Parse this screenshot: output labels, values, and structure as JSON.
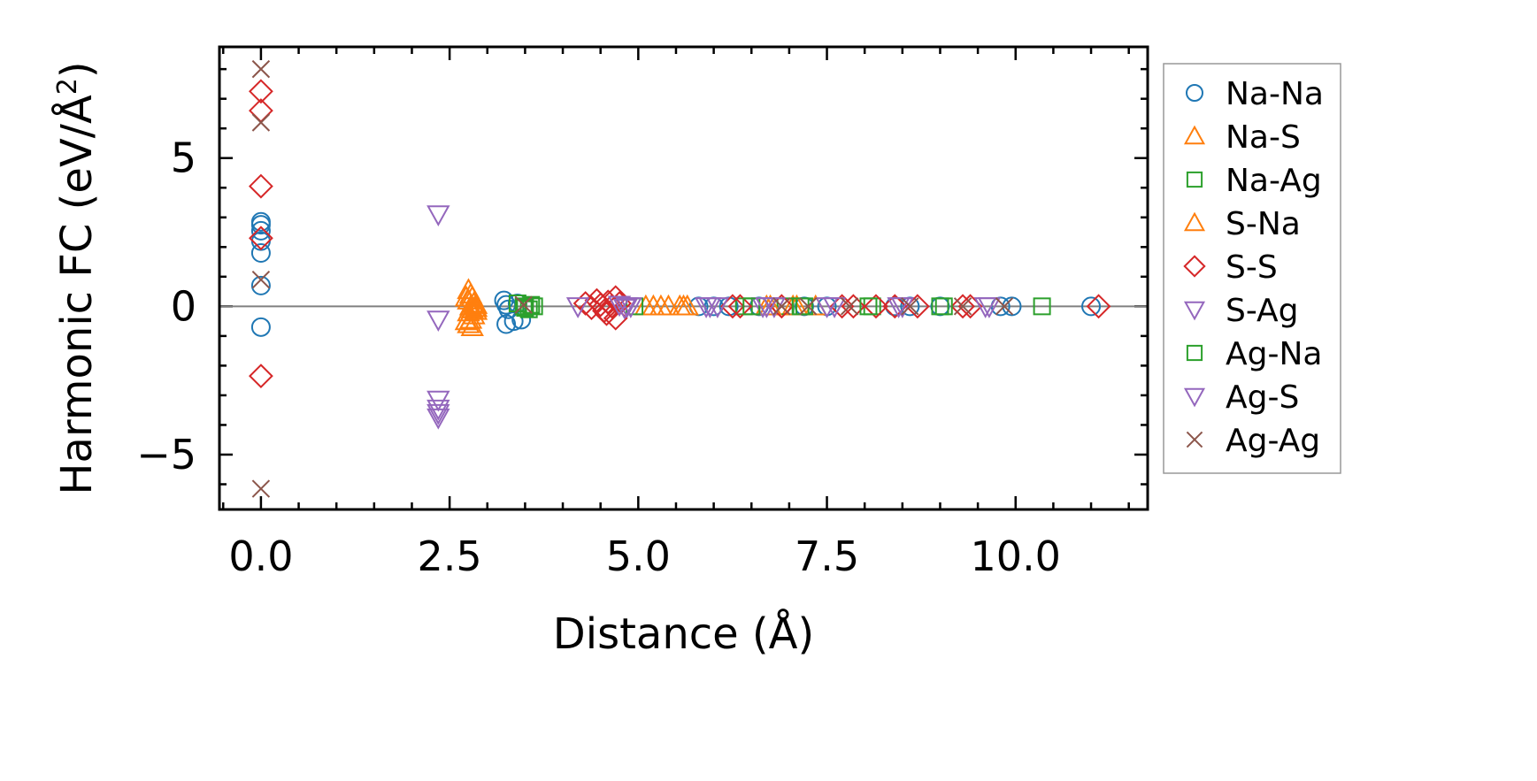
{
  "chart_data": {
    "type": "scatter",
    "xlabel": "Distance (Å)",
    "ylabel_main": "Harmonic FC (eV/Å",
    "ylabel_sup": "2",
    "ylabel_close": ")",
    "xlim": [
      -0.55,
      11.75
    ],
    "ylim": [
      -6.85,
      8.75
    ],
    "xticks": [
      0.0,
      2.5,
      5.0,
      7.5,
      10.0
    ],
    "xtick_labels": [
      "0.0",
      "2.5",
      "5.0",
      "7.5",
      "10.0"
    ],
    "yticks": [
      -5,
      0,
      5
    ],
    "ytick_labels": [
      "−5",
      "0",
      "5"
    ],
    "reference_line_y": 0,
    "grid": false,
    "legend_position": "outside-right",
    "series": [
      {
        "name": "Na-Na",
        "marker": "circle",
        "color": "#1f77b4",
        "points": [
          [
            0,
            2.85
          ],
          [
            0,
            2.75
          ],
          [
            0,
            2.55
          ],
          [
            0,
            2.2
          ],
          [
            0,
            1.8
          ],
          [
            0,
            0.7
          ],
          [
            0,
            -0.7
          ],
          [
            3.22,
            0.2
          ],
          [
            3.25,
            0.05
          ],
          [
            3.28,
            -0.1
          ],
          [
            3.25,
            -0.6
          ],
          [
            3.35,
            -0.5
          ],
          [
            3.45,
            -0.45
          ],
          [
            3.4,
            0.1
          ],
          [
            5.8,
            0
          ],
          [
            6.0,
            0
          ],
          [
            6.2,
            0
          ],
          [
            6.6,
            0
          ],
          [
            7.2,
            0
          ],
          [
            7.5,
            0
          ],
          [
            8.4,
            0
          ],
          [
            8.6,
            0
          ],
          [
            9.0,
            0
          ],
          [
            9.8,
            0
          ],
          [
            9.95,
            0
          ],
          [
            11.0,
            0
          ]
        ]
      },
      {
        "name": "Na-S",
        "marker": "triangle-up",
        "color": "#ff7f0e",
        "points": [
          [
            2.75,
            0.55
          ],
          [
            2.78,
            0.4
          ],
          [
            2.8,
            0.3
          ],
          [
            2.75,
            0.2
          ],
          [
            2.82,
            0.1
          ],
          [
            2.78,
            0
          ],
          [
            2.8,
            -0.1
          ],
          [
            2.75,
            -0.2
          ],
          [
            2.82,
            -0.3
          ],
          [
            2.78,
            -0.45
          ],
          [
            2.75,
            -0.6
          ],
          [
            2.8,
            -0.7
          ],
          [
            2.85,
            0.05
          ],
          [
            2.85,
            -0.15
          ],
          [
            5.1,
            0
          ],
          [
            5.2,
            0
          ],
          [
            5.4,
            0
          ],
          [
            5.55,
            0
          ],
          [
            5.65,
            0
          ],
          [
            6.7,
            0
          ],
          [
            7.05,
            0
          ],
          [
            7.35,
            0
          ]
        ]
      },
      {
        "name": "Na-Ag",
        "marker": "square",
        "color": "#2ca02c",
        "points": [
          [
            3.4,
            0.1
          ],
          [
            3.48,
            0
          ],
          [
            3.55,
            -0.1
          ],
          [
            3.62,
            0
          ],
          [
            4.95,
            0
          ],
          [
            6.4,
            0
          ],
          [
            6.95,
            0
          ],
          [
            7.2,
            0
          ],
          [
            8.1,
            0
          ],
          [
            9.0,
            0
          ],
          [
            10.35,
            0
          ]
        ]
      },
      {
        "name": "S-Na",
        "marker": "triangle-up",
        "color": "#ff7f0e",
        "points": [
          [
            2.72,
            0.3
          ],
          [
            2.85,
            -0.05
          ],
          [
            2.72,
            -0.5
          ],
          [
            5.3,
            0
          ],
          [
            5.6,
            0
          ],
          [
            6.75,
            0
          ],
          [
            7.1,
            0
          ]
        ]
      },
      {
        "name": "S-S",
        "marker": "diamond",
        "color": "#d62728",
        "points": [
          [
            0,
            7.25
          ],
          [
            0,
            6.6
          ],
          [
            0,
            4.05
          ],
          [
            0,
            2.3
          ],
          [
            0,
            -2.35
          ],
          [
            4.3,
            0.1
          ],
          [
            4.38,
            -0.05
          ],
          [
            4.45,
            0.2
          ],
          [
            4.5,
            0.05
          ],
          [
            4.55,
            -0.15
          ],
          [
            4.6,
            0.15
          ],
          [
            4.65,
            0
          ],
          [
            4.7,
            0.3
          ],
          [
            4.7,
            -0.4
          ],
          [
            4.75,
            0.1
          ],
          [
            4.58,
            -0.25
          ],
          [
            6.25,
            0
          ],
          [
            6.35,
            0
          ],
          [
            6.9,
            0
          ],
          [
            7.7,
            0
          ],
          [
            7.85,
            0
          ],
          [
            8.15,
            0
          ],
          [
            8.4,
            0
          ],
          [
            8.7,
            0
          ],
          [
            9.3,
            0
          ],
          [
            9.4,
            0
          ],
          [
            11.1,
            0
          ]
        ]
      },
      {
        "name": "S-Ag",
        "marker": "triangle-down",
        "color": "#9467bd",
        "points": [
          [
            2.35,
            3.1
          ],
          [
            2.35,
            -0.45
          ],
          [
            2.35,
            -3.15
          ],
          [
            2.35,
            -3.45
          ],
          [
            2.35,
            -3.75
          ],
          [
            4.2,
            0
          ],
          [
            4.75,
            0.05
          ],
          [
            4.82,
            -0.05
          ],
          [
            4.9,
            0
          ],
          [
            5.95,
            0
          ],
          [
            6.05,
            0
          ],
          [
            6.65,
            0
          ],
          [
            6.8,
            0
          ],
          [
            7.5,
            0
          ],
          [
            8.5,
            0
          ],
          [
            9.65,
            0
          ]
        ]
      },
      {
        "name": "Ag-Na",
        "marker": "square",
        "color": "#2ca02c",
        "points": [
          [
            3.5,
            -0.05
          ],
          [
            3.58,
            0.05
          ],
          [
            6.5,
            0
          ],
          [
            7.15,
            0
          ],
          [
            8.05,
            0
          ],
          [
            9.05,
            0
          ]
        ]
      },
      {
        "name": "Ag-S",
        "marker": "triangle-down",
        "color": "#9467bd",
        "points": [
          [
            2.35,
            -3.6
          ],
          [
            4.85,
            0
          ],
          [
            5.9,
            0
          ],
          [
            6.7,
            0
          ],
          [
            7.6,
            0
          ],
          [
            8.45,
            0
          ],
          [
            9.6,
            0
          ]
        ]
      },
      {
        "name": "Ag-Ag",
        "marker": "x",
        "color": "#8c564b",
        "points": [
          [
            0,
            8.0
          ],
          [
            0,
            6.2
          ],
          [
            0,
            0.9
          ],
          [
            0,
            -6.15
          ],
          [
            3.48,
            0.05
          ],
          [
            6.9,
            0
          ],
          [
            7.25,
            0
          ],
          [
            7.8,
            0
          ],
          [
            8.6,
            0
          ],
          [
            9.3,
            0
          ],
          [
            9.85,
            0
          ]
        ]
      }
    ]
  }
}
